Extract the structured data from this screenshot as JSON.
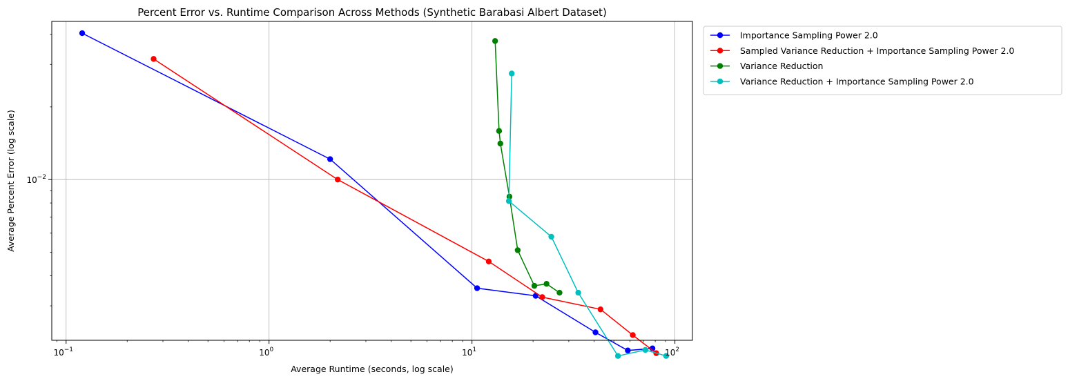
{
  "chart_data": {
    "type": "line",
    "title": "Percent Error vs. Runtime Comparison Across Methods (Synthetic Barabasi Albert Dataset)",
    "xlabel": "Average Runtime (seconds, log scale)",
    "ylabel": "Average Percent Error (log scale)",
    "xscale": "log",
    "yscale": "log",
    "xlim": [
      0.085,
      122
    ],
    "ylim": [
      0.00216,
      0.0452
    ],
    "xticks": [
      {
        "value": 0.1,
        "base": "10",
        "exp": "−1"
      },
      {
        "value": 1,
        "base": "10",
        "exp": "0"
      },
      {
        "value": 10,
        "base": "10",
        "exp": "1"
      },
      {
        "value": 100,
        "base": "10",
        "exp": "2"
      }
    ],
    "yticks": [
      {
        "value": 0.01,
        "base": "10",
        "exp": "−2"
      }
    ],
    "grid": true,
    "legend": "outside-upper-right",
    "series": [
      {
        "name": "Importance Sampling Power 2.0",
        "color": "#0000ff",
        "x": [
          0.12,
          2.0,
          10.6,
          20.6,
          40.6,
          58.6,
          77.5
        ],
        "y": [
          0.0404,
          0.01215,
          0.00355,
          0.0033,
          0.00233,
          0.00196,
          0.002
        ]
      },
      {
        "name": "Sampled Variance Reduction + Importance Sampling Power 2.0",
        "color": "#ff0000",
        "x": [
          0.27,
          2.18,
          12.1,
          22.2,
          43.0,
          62.0,
          80.9
        ],
        "y": [
          0.0316,
          0.01,
          0.00458,
          0.00326,
          0.0029,
          0.00227,
          0.00191
        ]
      },
      {
        "name": "Variance Reduction",
        "color": "#008000",
        "x": [
          13.0,
          13.6,
          13.8,
          15.3,
          16.8,
          20.3,
          23.3,
          27.0
        ],
        "y": [
          0.0375,
          0.0159,
          0.0141,
          0.0085,
          0.0051,
          0.00363,
          0.0037,
          0.0034
        ]
      },
      {
        "name": "Variance Reduction + Importance Sampling Power 2.0",
        "color": "#00bfbf",
        "x": [
          15.7,
          15.2,
          24.6,
          33.4,
          52.4,
          71.5,
          90.5
        ],
        "y": [
          0.0275,
          0.00815,
          0.0058,
          0.0034,
          0.00186,
          0.00197,
          0.00186
        ]
      }
    ]
  }
}
